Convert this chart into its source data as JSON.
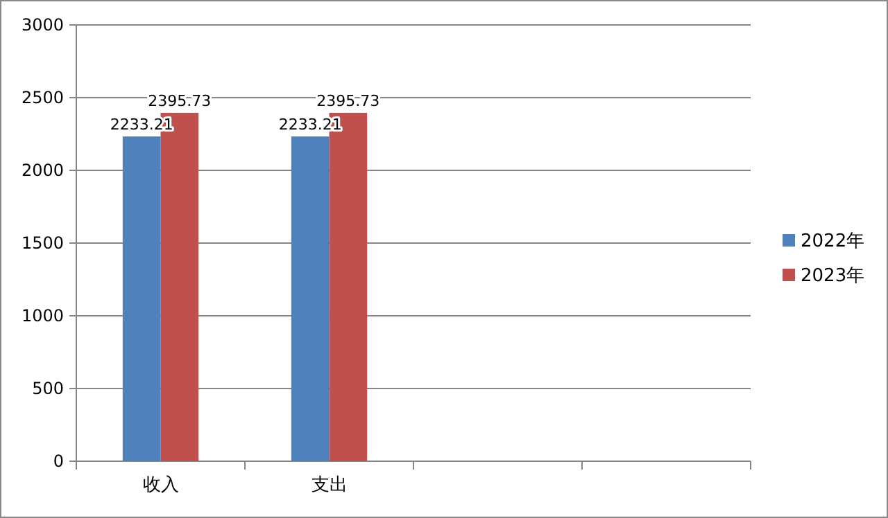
{
  "chart_data": {
    "type": "bar",
    "categories": [
      "收入",
      "支出",
      null,
      null
    ],
    "series": [
      {
        "name": "2022年",
        "color": "#4f81bd",
        "values": [
          2233.21,
          2233.21,
          null,
          null
        ]
      },
      {
        "name": "2023年",
        "color": "#c0504d",
        "values": [
          2395.73,
          2395.73,
          null,
          null
        ]
      }
    ],
    "ylim": [
      0,
      3000
    ],
    "yticks": [
      0,
      500,
      1000,
      1500,
      2000,
      2500,
      3000
    ],
    "grid": "y",
    "legend": "right",
    "data_labels": true
  }
}
